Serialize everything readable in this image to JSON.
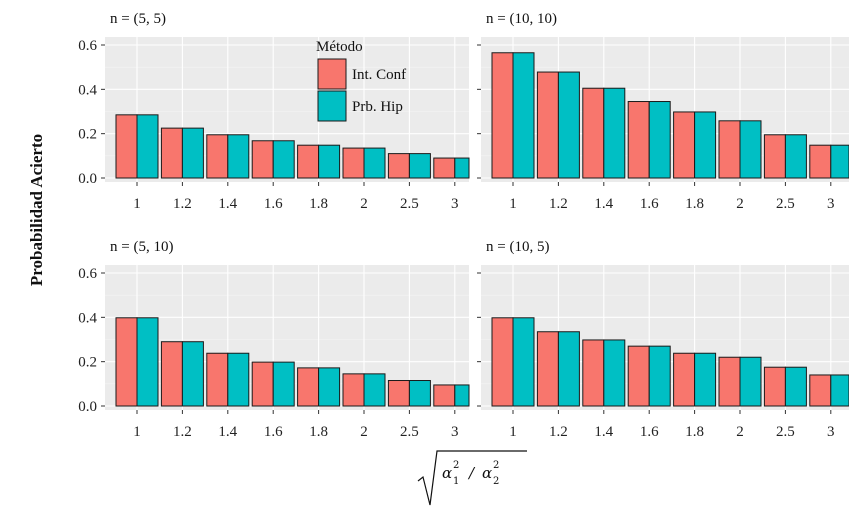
{
  "chart_data": {
    "type": "bar",
    "ylabel": "Probabilidad Acierto",
    "xlabel": {
      "radical": "√",
      "alpha": "α",
      "sub1": "1",
      "sub2": "2",
      "sup": "2",
      "slash": "/"
    },
    "ylim": [
      0,
      0.6
    ],
    "yticks": [
      "0.0",
      "0.2",
      "0.4",
      "0.6"
    ],
    "grid": true,
    "categories": [
      "1",
      "1.2",
      "1.4",
      "1.6",
      "1.8",
      "2",
      "2.5",
      "3"
    ],
    "legend": {
      "title": "Método",
      "placement": "top-center",
      "entries": [
        {
          "name": "Int. Conf",
          "color": "#F8766D"
        },
        {
          "name": "Prb. Hip",
          "color": "#00BFC4"
        }
      ]
    },
    "panels": [
      {
        "title": "n = (5, 5)",
        "series": [
          {
            "name": "Int. Conf",
            "values": [
              0.285,
              0.225,
              0.195,
              0.168,
              0.148,
              0.135,
              0.11,
              0.09
            ]
          },
          {
            "name": "Prb. Hip",
            "values": [
              0.285,
              0.225,
              0.195,
              0.168,
              0.148,
              0.135,
              0.11,
              0.09
            ]
          }
        ]
      },
      {
        "title": "n = (10, 10)",
        "series": [
          {
            "name": "Int. Conf",
            "values": [
              0.565,
              0.478,
              0.405,
              0.345,
              0.298,
              0.258,
              0.195,
              0.148
            ]
          },
          {
            "name": "Prb. Hip",
            "values": [
              0.565,
              0.478,
              0.405,
              0.345,
              0.298,
              0.258,
              0.195,
              0.148
            ]
          }
        ]
      },
      {
        "title": "n = (5, 10)",
        "series": [
          {
            "name": "Int. Conf",
            "values": [
              0.398,
              0.29,
              0.238,
              0.198,
              0.172,
              0.145,
              0.115,
              0.095
            ]
          },
          {
            "name": "Prb. Hip",
            "values": [
              0.398,
              0.29,
              0.238,
              0.198,
              0.172,
              0.145,
              0.115,
              0.095
            ]
          }
        ]
      },
      {
        "title": "n = (10, 5)",
        "series": [
          {
            "name": "Int. Conf",
            "values": [
              0.398,
              0.335,
              0.298,
              0.27,
              0.238,
              0.22,
              0.175,
              0.14
            ]
          },
          {
            "name": "Prb. Hip",
            "values": [
              0.398,
              0.335,
              0.298,
              0.27,
              0.238,
              0.22,
              0.175,
              0.14
            ]
          }
        ]
      }
    ]
  }
}
